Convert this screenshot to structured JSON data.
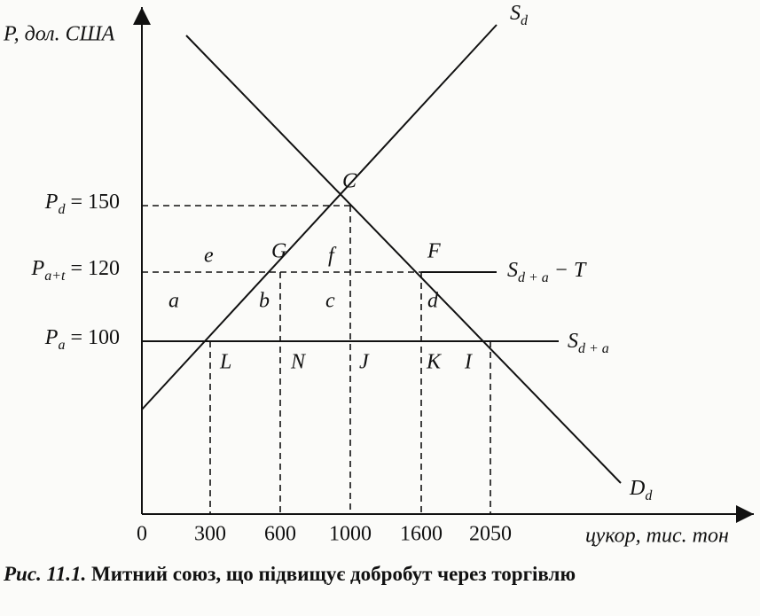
{
  "axes": {
    "y_label": "P, дол. США",
    "x_label": "цукор, тис. тон",
    "x_ticks": [
      "0",
      "300",
      "600",
      "1000",
      "1600",
      "2050"
    ]
  },
  "curves": {
    "supply": {
      "main": "S",
      "sub": "d"
    },
    "demand": {
      "main": "D",
      "sub": "d"
    },
    "supply_partner_tariff": {
      "main": "S",
      "sub": "d + a",
      "rest": " − T"
    },
    "supply_partner": {
      "main": "S",
      "sub": "d + a"
    }
  },
  "prices": [
    {
      "main": "P",
      "sub": "d",
      "rest": " = 150"
    },
    {
      "main": "P",
      "sub": "a+t",
      "rest": " = 120"
    },
    {
      "main": "P",
      "sub": "a",
      "rest": " = 100"
    }
  ],
  "points": [
    "C",
    "G",
    "F",
    "L",
    "N",
    "J",
    "K",
    "I"
  ],
  "areas": [
    "e",
    "f",
    "a",
    "b",
    "c",
    "d"
  ],
  "caption": {
    "number": "Рис. 11.1.",
    "text": "Митний союз, що підвищує добробут через торгівлю"
  }
}
